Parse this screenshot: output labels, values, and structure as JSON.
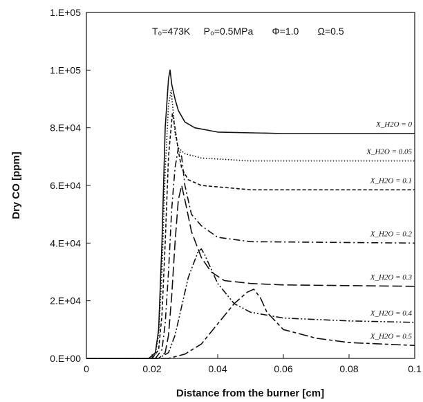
{
  "chart_data": {
    "type": "line",
    "title": "",
    "xlabel": "Distance from the burner [cm]",
    "ylabel": "Dry CO [ppm]",
    "xlim": [
      0,
      0.1
    ],
    "ylim": [
      0,
      120000
    ],
    "x_ticks": [
      0,
      0.02,
      0.04,
      0.06,
      0.08,
      0.1
    ],
    "x_tick_labels": [
      "0",
      "0.02",
      "0.04",
      "0.06",
      "0.08",
      "0.1"
    ],
    "y_ticks": [
      0,
      20000,
      40000,
      60000,
      80000,
      100000,
      120000
    ],
    "y_tick_labels": [
      "0.E+00",
      "2.E+04",
      "4.E+04",
      "6.E+04",
      "8.E+04",
      "1.E+05",
      "1.E+05"
    ],
    "annotation": "T₀=473K     P₀=0.5MPa       Φ=1.0       Ω=0.5",
    "grid": false,
    "series": [
      {
        "name": "X_H2O = 0",
        "label": "X_H2O = 0",
        "dash": "solid",
        "points": [
          [
            0,
            0
          ],
          [
            0.019,
            0
          ],
          [
            0.021,
            2000
          ],
          [
            0.022,
            10000
          ],
          [
            0.023,
            40000
          ],
          [
            0.024,
            80000
          ],
          [
            0.025,
            97000
          ],
          [
            0.0255,
            100000
          ],
          [
            0.026,
            95000
          ],
          [
            0.027,
            90000
          ],
          [
            0.028,
            86000
          ],
          [
            0.03,
            82000
          ],
          [
            0.033,
            80000
          ],
          [
            0.04,
            78500
          ],
          [
            0.06,
            78000
          ],
          [
            0.1,
            78000
          ]
        ]
      },
      {
        "name": "X_H2O = 0.05",
        "label": "X_H2O = 0.05",
        "dash": "dotted",
        "points": [
          [
            0,
            0
          ],
          [
            0.019,
            0
          ],
          [
            0.021,
            1500
          ],
          [
            0.022,
            8000
          ],
          [
            0.023,
            30000
          ],
          [
            0.024,
            65000
          ],
          [
            0.025,
            88000
          ],
          [
            0.0258,
            93000
          ],
          [
            0.0265,
            85000
          ],
          [
            0.027,
            78000
          ],
          [
            0.028,
            73000
          ],
          [
            0.03,
            71000
          ],
          [
            0.035,
            69500
          ],
          [
            0.05,
            68500
          ],
          [
            0.1,
            68500
          ]
        ]
      },
      {
        "name": "X_H2O = 0.1",
        "label": "X_H2O = 0.1",
        "dash": "short-dash",
        "points": [
          [
            0,
            0
          ],
          [
            0.02,
            0
          ],
          [
            0.022,
            3000
          ],
          [
            0.023,
            15000
          ],
          [
            0.024,
            40000
          ],
          [
            0.025,
            70000
          ],
          [
            0.0262,
            85000
          ],
          [
            0.027,
            80000
          ],
          [
            0.028,
            72000
          ],
          [
            0.029,
            66000
          ],
          [
            0.031,
            62000
          ],
          [
            0.035,
            60000
          ],
          [
            0.05,
            58500
          ],
          [
            0.1,
            58500
          ]
        ]
      },
      {
        "name": "X_H2O = 0.2",
        "label": "X_H2O = 0.2",
        "dash": "dash-dot",
        "points": [
          [
            0,
            0
          ],
          [
            0.021,
            0
          ],
          [
            0.023,
            3000
          ],
          [
            0.024,
            12000
          ],
          [
            0.025,
            30000
          ],
          [
            0.026,
            52000
          ],
          [
            0.027,
            66000
          ],
          [
            0.028,
            73000
          ],
          [
            0.029,
            70000
          ],
          [
            0.03,
            60000
          ],
          [
            0.032,
            50000
          ],
          [
            0.035,
            46000
          ],
          [
            0.04,
            42000
          ],
          [
            0.05,
            40500
          ],
          [
            0.1,
            40000
          ]
        ]
      },
      {
        "name": "X_H2O = 0.3",
        "label": "X_H2O = 0.3",
        "dash": "long-dash",
        "points": [
          [
            0,
            0
          ],
          [
            0.022,
            0
          ],
          [
            0.024,
            2000
          ],
          [
            0.025,
            8000
          ],
          [
            0.026,
            22000
          ],
          [
            0.027,
            40000
          ],
          [
            0.028,
            55000
          ],
          [
            0.029,
            60000
          ],
          [
            0.03,
            55000
          ],
          [
            0.032,
            44000
          ],
          [
            0.035,
            35000
          ],
          [
            0.038,
            30000
          ],
          [
            0.042,
            27000
          ],
          [
            0.05,
            26000
          ],
          [
            0.06,
            25500
          ],
          [
            0.1,
            25000
          ]
        ]
      },
      {
        "name": "X_H2O = 0.4",
        "label": "X_H2O = 0.4",
        "dash": "dash-dot-dot",
        "points": [
          [
            0,
            0
          ],
          [
            0.022,
            0
          ],
          [
            0.025,
            2000
          ],
          [
            0.027,
            8000
          ],
          [
            0.029,
            18000
          ],
          [
            0.031,
            28000
          ],
          [
            0.033,
            34000
          ],
          [
            0.034,
            37000
          ],
          [
            0.035,
            38000
          ],
          [
            0.036,
            36000
          ],
          [
            0.038,
            31000
          ],
          [
            0.04,
            26000
          ],
          [
            0.045,
            19000
          ],
          [
            0.05,
            16000
          ],
          [
            0.06,
            14000
          ],
          [
            0.08,
            13000
          ],
          [
            0.1,
            12500
          ]
        ]
      },
      {
        "name": "X_H2O = 0.5",
        "label": "X_H2O = 0.5",
        "dash": "long-short",
        "points": [
          [
            0,
            0
          ],
          [
            0.025,
            0
          ],
          [
            0.03,
            1500
          ],
          [
            0.035,
            5000
          ],
          [
            0.04,
            12000
          ],
          [
            0.045,
            19000
          ],
          [
            0.049,
            23000
          ],
          [
            0.051,
            24000
          ],
          [
            0.053,
            21000
          ],
          [
            0.055,
            16000
          ],
          [
            0.06,
            10000
          ],
          [
            0.07,
            7000
          ],
          [
            0.08,
            5500
          ],
          [
            0.1,
            4500
          ]
        ]
      }
    ]
  }
}
